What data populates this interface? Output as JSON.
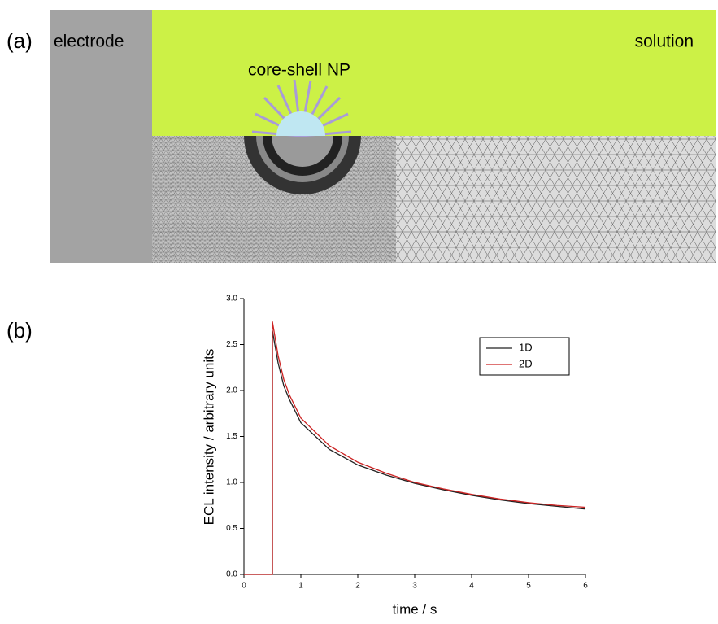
{
  "panel_a": {
    "label": "(a)",
    "electrode": "electrode",
    "solution": "solution",
    "particle": "core-shell NP"
  },
  "chart_data": {
    "type": "line",
    "panel_label": "(b)",
    "xlabel": "time / s",
    "ylabel": "ECL intensity / arbitrary units",
    "x": [
      0,
      0.5,
      0.5,
      0.6,
      0.7,
      0.8,
      1,
      1.5,
      2,
      2.5,
      3,
      3.5,
      4,
      4.5,
      5,
      5.5,
      6
    ],
    "series": [
      {
        "name": "1D",
        "color": "#222222",
        "values": [
          0,
          0,
          2.65,
          2.3,
          2.05,
          1.9,
          1.65,
          1.36,
          1.19,
          1.08,
          0.99,
          0.92,
          0.86,
          0.81,
          0.77,
          0.74,
          0.71
        ]
      },
      {
        "name": "2D",
        "color": "#cc2222",
        "values": [
          0,
          0,
          2.75,
          2.38,
          2.12,
          1.95,
          1.7,
          1.4,
          1.22,
          1.1,
          1.0,
          0.93,
          0.87,
          0.82,
          0.78,
          0.75,
          0.73
        ]
      }
    ],
    "xlim": [
      0,
      6
    ],
    "xticks": [
      0,
      1,
      2,
      3,
      4,
      5,
      6
    ],
    "ylim": [
      0,
      3
    ],
    "yticks": [
      {
        "value": 0,
        "label": "0.0"
      },
      0.5,
      {
        "value": 1,
        "label": "1.0"
      },
      1.5,
      {
        "value": 2,
        "label": "2.0"
      },
      2.5,
      {
        "value": 3,
        "label": "3.0"
      }
    ],
    "legend": "upper right"
  }
}
